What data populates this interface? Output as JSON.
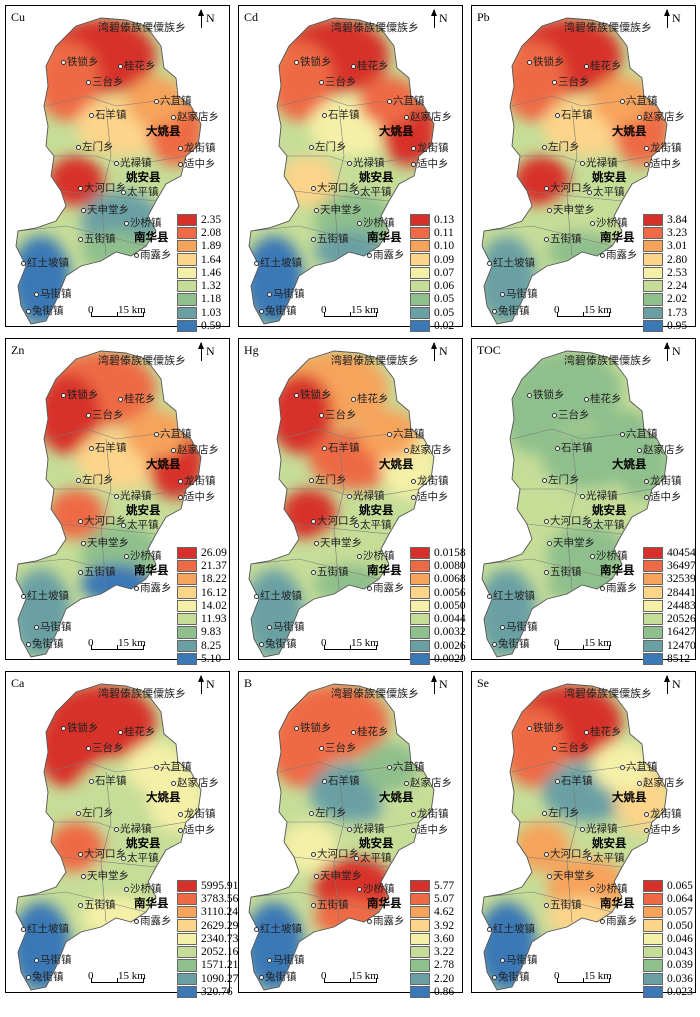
{
  "place_labels": [
    {
      "key": "wanbi",
      "text": "湾碧傣族傈僳族乡",
      "type": "top"
    },
    {
      "key": "tiesuo",
      "text": "铁锁乡",
      "type": "town"
    },
    {
      "key": "guihua",
      "text": "桂花乡",
      "type": "town"
    },
    {
      "key": "santai",
      "text": "三台乡",
      "type": "town"
    },
    {
      "key": "liujie",
      "text": "六苴镇",
      "type": "town"
    },
    {
      "key": "shiyang",
      "text": "石羊镇",
      "type": "town"
    },
    {
      "key": "zhaojiadian",
      "text": "赵家店乡",
      "type": "town"
    },
    {
      "key": "dayao",
      "text": "大姚县",
      "type": "county"
    },
    {
      "key": "longjie",
      "text": "龙街镇",
      "type": "town"
    },
    {
      "key": "zuomen",
      "text": "左门乡",
      "type": "town"
    },
    {
      "key": "shizhong",
      "text": "适中乡",
      "type": "town"
    },
    {
      "key": "guanglu",
      "text": "光禄镇",
      "type": "town"
    },
    {
      "key": "yaoan",
      "text": "姚安县",
      "type": "county"
    },
    {
      "key": "dahekou",
      "text": "大河口乡",
      "type": "town"
    },
    {
      "key": "taiping",
      "text": "太平镇",
      "type": "town"
    },
    {
      "key": "tianshentang",
      "text": "天申堂乡",
      "type": "town"
    },
    {
      "key": "shaqiao",
      "text": "沙桥镇",
      "type": "town"
    },
    {
      "key": "wujie",
      "text": "五街镇",
      "type": "town"
    },
    {
      "key": "nanhua",
      "text": "南华县",
      "type": "county"
    },
    {
      "key": "yulu",
      "text": "雨露乡",
      "type": "town"
    },
    {
      "key": "hongtupo",
      "text": "红土坡镇",
      "type": "town"
    },
    {
      "key": "majie",
      "text": "马街镇",
      "type": "town"
    },
    {
      "key": "tujie",
      "text": "兔街镇",
      "type": "town"
    }
  ],
  "scale": {
    "zero": "0",
    "label": "15 km"
  },
  "north_label": "N",
  "palette": [
    "#d7302a",
    "#ee6a45",
    "#f6a35c",
    "#fcd48a",
    "#f5f0a8",
    "#c6dd98",
    "#8fbf8c",
    "#6aa0a4",
    "#3b78b6"
  ],
  "panels": [
    {
      "id": "cu",
      "title": "Cu",
      "values": [
        "2.35",
        "2.08",
        "1.89",
        "1.64",
        "1.46",
        "1.32",
        "1.18",
        "1.03",
        "0.59"
      ],
      "levels": {
        "north": 0,
        "northwest": 1,
        "center": 3,
        "east": 1,
        "dayao": 2,
        "west": 0,
        "south": 7,
        "southwest": 8,
        "southeast": 6
      }
    },
    {
      "id": "cd",
      "title": "Cd",
      "values": [
        "0.13",
        "0.11",
        "0.10",
        "0.09",
        "0.07",
        "0.06",
        "0.05",
        "0.05",
        "0.02"
      ],
      "levels": {
        "north": 0,
        "northwest": 1,
        "center": 4,
        "east": 0,
        "dayao": 1,
        "west": 3,
        "south": 6,
        "southwest": 8,
        "southeast": 7
      }
    },
    {
      "id": "pb",
      "title": "Pb",
      "values": [
        "3.84",
        "3.23",
        "3.01",
        "2.80",
        "2.53",
        "2.24",
        "2.02",
        "1.73",
        "0.95"
      ],
      "levels": {
        "north": 0,
        "northwest": 1,
        "center": 3,
        "east": 1,
        "dayao": 2,
        "west": 0,
        "south": 5,
        "southwest": 7,
        "southeast": 6
      }
    },
    {
      "id": "zn",
      "title": "Zn",
      "values": [
        "26.09",
        "21.37",
        "18.22",
        "16.12",
        "14.02",
        "11.93",
        "9.83",
        "8.25",
        "5.10"
      ],
      "levels": {
        "north": 1,
        "northwest": 0,
        "center": 3,
        "east": 0,
        "dayao": 2,
        "west": 1,
        "south": 6,
        "southwest": 7,
        "southeast": 8
      }
    },
    {
      "id": "hg",
      "title": "Hg",
      "values": [
        "0.0158",
        "0.0080",
        "0.0068",
        "0.0056",
        "0.0050",
        "0.0044",
        "0.0032",
        "0.0026",
        "0.0020"
      ],
      "levels": {
        "north": 2,
        "northwest": 0,
        "center": 1,
        "east": 4,
        "dayao": 2,
        "west": 0,
        "south": 5,
        "southwest": 7,
        "southeast": 6
      }
    },
    {
      "id": "toc",
      "title": "TOC",
      "values": [
        "40454",
        "36497",
        "32539",
        "28441",
        "24483",
        "20526",
        "16427",
        "12470",
        "8512"
      ],
      "levels": {
        "north": 6,
        "northwest": 6,
        "center": 6,
        "east": 6,
        "dayao": 6,
        "west": 5,
        "south": 6,
        "southwest": 7,
        "southeast": 6
      }
    },
    {
      "id": "ca",
      "title": "Ca",
      "values": [
        "5995.91",
        "3783.56",
        "3110.24",
        "2629.29",
        "2340.73",
        "2052.16",
        "1571.21",
        "1090.27",
        "320.76"
      ],
      "levels": {
        "north": 0,
        "northwest": 0,
        "center": 5,
        "east": 4,
        "dayao": 4,
        "west": 1,
        "south": 5,
        "southwest": 8,
        "southeast": 4
      }
    },
    {
      "id": "b",
      "title": "B",
      "values": [
        "5.77",
        "5.07",
        "4.62",
        "3.92",
        "3.60",
        "3.22",
        "2.78",
        "2.20",
        "0.86"
      ],
      "levels": {
        "north": 1,
        "northwest": 1,
        "center": 7,
        "east": 5,
        "dayao": 6,
        "west": 4,
        "south": 0,
        "southwest": 8,
        "southeast": 1
      }
    },
    {
      "id": "se",
      "title": "Se",
      "values": [
        "0.065",
        "0.064",
        "0.057",
        "0.050",
        "0.046",
        "0.043",
        "0.039",
        "0.036",
        "0.023"
      ],
      "levels": {
        "north": 0,
        "northwest": 1,
        "center": 7,
        "east": 3,
        "dayao": 4,
        "west": 2,
        "south": 2,
        "southwest": 8,
        "southeast": 3
      }
    }
  ]
}
